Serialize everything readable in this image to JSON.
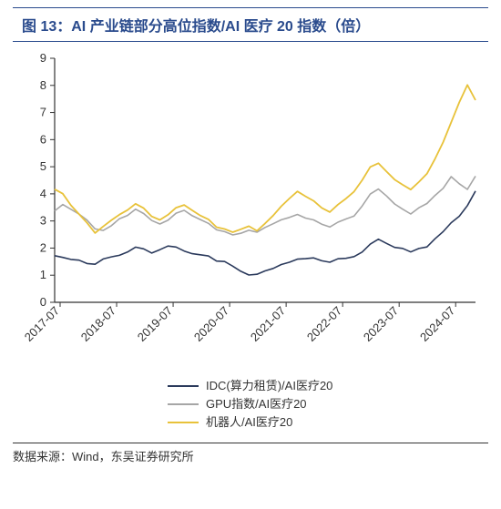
{
  "title": "图 13：AI 产业链部分高位指数/AI 医疗 20 指数（倍）",
  "footer": "数据来源：Wind，东吴证券研究所",
  "chart": {
    "type": "line",
    "background_color": "#ffffff",
    "axis_color": "#333333",
    "tick_fontsize": 13,
    "ylim": [
      0,
      9
    ],
    "ytick_step": 1,
    "yticks": [
      0,
      1,
      2,
      3,
      4,
      5,
      6,
      7,
      8,
      9
    ],
    "x_categories": [
      "2017-07",
      "2018-07",
      "2019-07",
      "2020-07",
      "2021-07",
      "2022-07",
      "2023-07",
      "2024-07"
    ],
    "x_label_rotation": -45,
    "legend_position": "bottom",
    "series": [
      {
        "name": "IDC(算力租赁)/AI医疗20",
        "color": "#2b3a5c",
        "line_width": 1.6,
        "values": [
          1.75,
          1.65,
          1.6,
          1.5,
          1.4,
          1.45,
          1.55,
          1.65,
          1.7,
          1.85,
          2.0,
          1.95,
          1.85,
          1.95,
          2.1,
          2.05,
          1.95,
          1.85,
          1.75,
          1.65,
          1.55,
          1.45,
          1.3,
          1.15,
          1.05,
          1.0,
          1.1,
          1.25,
          1.4,
          1.5,
          1.6,
          1.65,
          1.6,
          1.55,
          1.5,
          1.55,
          1.6,
          1.7,
          1.9,
          2.1,
          2.3,
          2.15,
          2.05,
          1.95,
          1.9,
          2.0,
          2.1,
          2.3,
          2.6,
          2.9,
          3.2,
          3.6,
          4.1
        ]
      },
      {
        "name": "GPU指数/AI医疗20",
        "color": "#a6a6a6",
        "line_width": 1.6,
        "values": [
          3.4,
          3.6,
          3.45,
          3.2,
          3.0,
          2.75,
          2.6,
          2.8,
          3.05,
          3.2,
          3.4,
          3.25,
          3.05,
          2.9,
          3.05,
          3.3,
          3.45,
          3.25,
          3.05,
          2.85,
          2.7,
          2.55,
          2.45,
          2.55,
          2.7,
          2.55,
          2.7,
          2.9,
          3.05,
          3.15,
          3.25,
          3.15,
          3.0,
          2.9,
          2.8,
          2.9,
          3.05,
          3.2,
          3.6,
          3.95,
          4.15,
          3.9,
          3.65,
          3.4,
          3.3,
          3.5,
          3.7,
          3.9,
          4.2,
          4.6,
          4.4,
          4.2,
          4.65
        ]
      },
      {
        "name": "机器人/AI医疗20",
        "color": "#e8c23a",
        "line_width": 1.8,
        "values": [
          4.2,
          4.0,
          3.6,
          3.2,
          2.9,
          2.6,
          2.75,
          3.0,
          3.2,
          3.4,
          3.6,
          3.45,
          3.2,
          3.05,
          3.25,
          3.5,
          3.65,
          3.45,
          3.2,
          3.0,
          2.8,
          2.65,
          2.55,
          2.7,
          2.85,
          2.6,
          2.85,
          3.2,
          3.55,
          3.85,
          4.1,
          3.95,
          3.7,
          3.5,
          3.35,
          3.55,
          3.8,
          4.1,
          4.55,
          4.95,
          5.1,
          4.8,
          4.55,
          4.3,
          4.2,
          4.45,
          4.8,
          5.25,
          5.9,
          6.6,
          7.4,
          8.05,
          7.45
        ]
      }
    ]
  }
}
